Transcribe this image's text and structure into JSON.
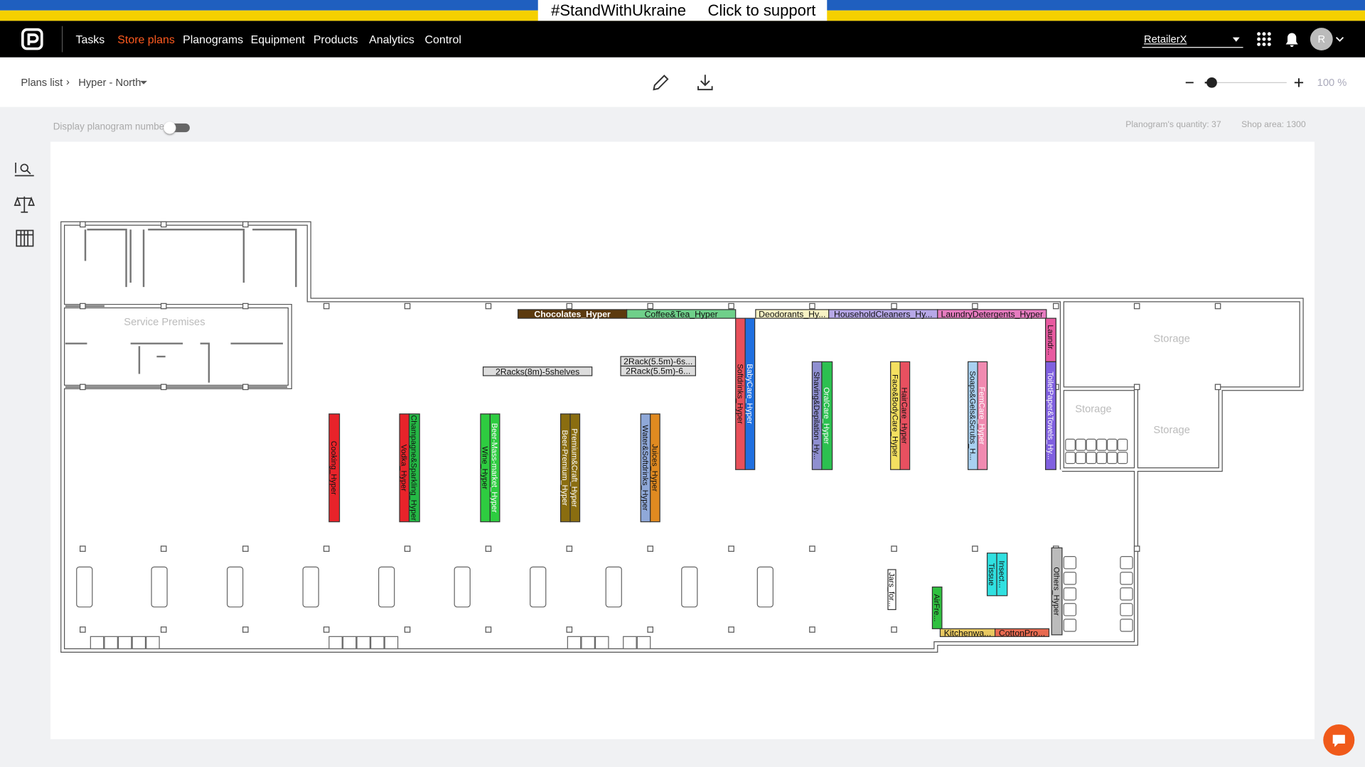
{
  "banner": {
    "hashtag": "#StandWithUkraine",
    "cta": "Click to support"
  },
  "nav": {
    "items": [
      "Tasks",
      "Store plans",
      "Planograms",
      "Equipment",
      "Products",
      "Analytics",
      "Control"
    ],
    "active": 1,
    "retailer": "RetailerX",
    "avatar": "R"
  },
  "toolbar": {
    "breadcrumb": [
      "Plans list",
      "Hyper - North"
    ],
    "zoom": "100 %"
  },
  "info": {
    "toggle_label": "Display planogram number",
    "quantity": "Planogram's quantity: 37",
    "area": "Shop area: 1300"
  },
  "plan": {
    "rooms": [
      "Service Premises",
      "Storage",
      "Storage",
      "Storage"
    ],
    "planograms": [
      "Chocolates_Hyper",
      "Coffee&Tea_Hyper",
      "Deodorants_Hy...",
      "HouseholdCleaners_Hy...",
      "LaundryDetergents_Hyper",
      "2Racks(8m)-5shelves",
      "2Rack(5.5m)-6s...",
      "2Rack(5.5m)-6...",
      "Cooking_Hyper",
      "Vodka_Hyper",
      "Champagne&Sparkling_Hyper",
      "Wine_Hyper",
      "Beer-Mass-market_Hyper",
      "Beer-Premium_Hyper",
      "Premium&Craft_Hyper",
      "Water&Softdrinks_Hyper",
      "Juices_Hyper",
      "Softdrinks_Hyper",
      "BabyCare_Hyper",
      "Shaving&Depilation_Hy...",
      "OralCare_Hyper",
      "Face&BodyCare_Hyper",
      "HairCare_Hyper",
      "Soaps&Gels&Scrubs_H...",
      "FemCare_Hyper",
      "Laundr...",
      "ToiletPaper&Towels_Hy...",
      "Tissue",
      "Insect...",
      "Jars_for...",
      "AirFre...",
      "Kitchenwa...",
      "CottonPro...",
      "Others_Hyper"
    ]
  }
}
